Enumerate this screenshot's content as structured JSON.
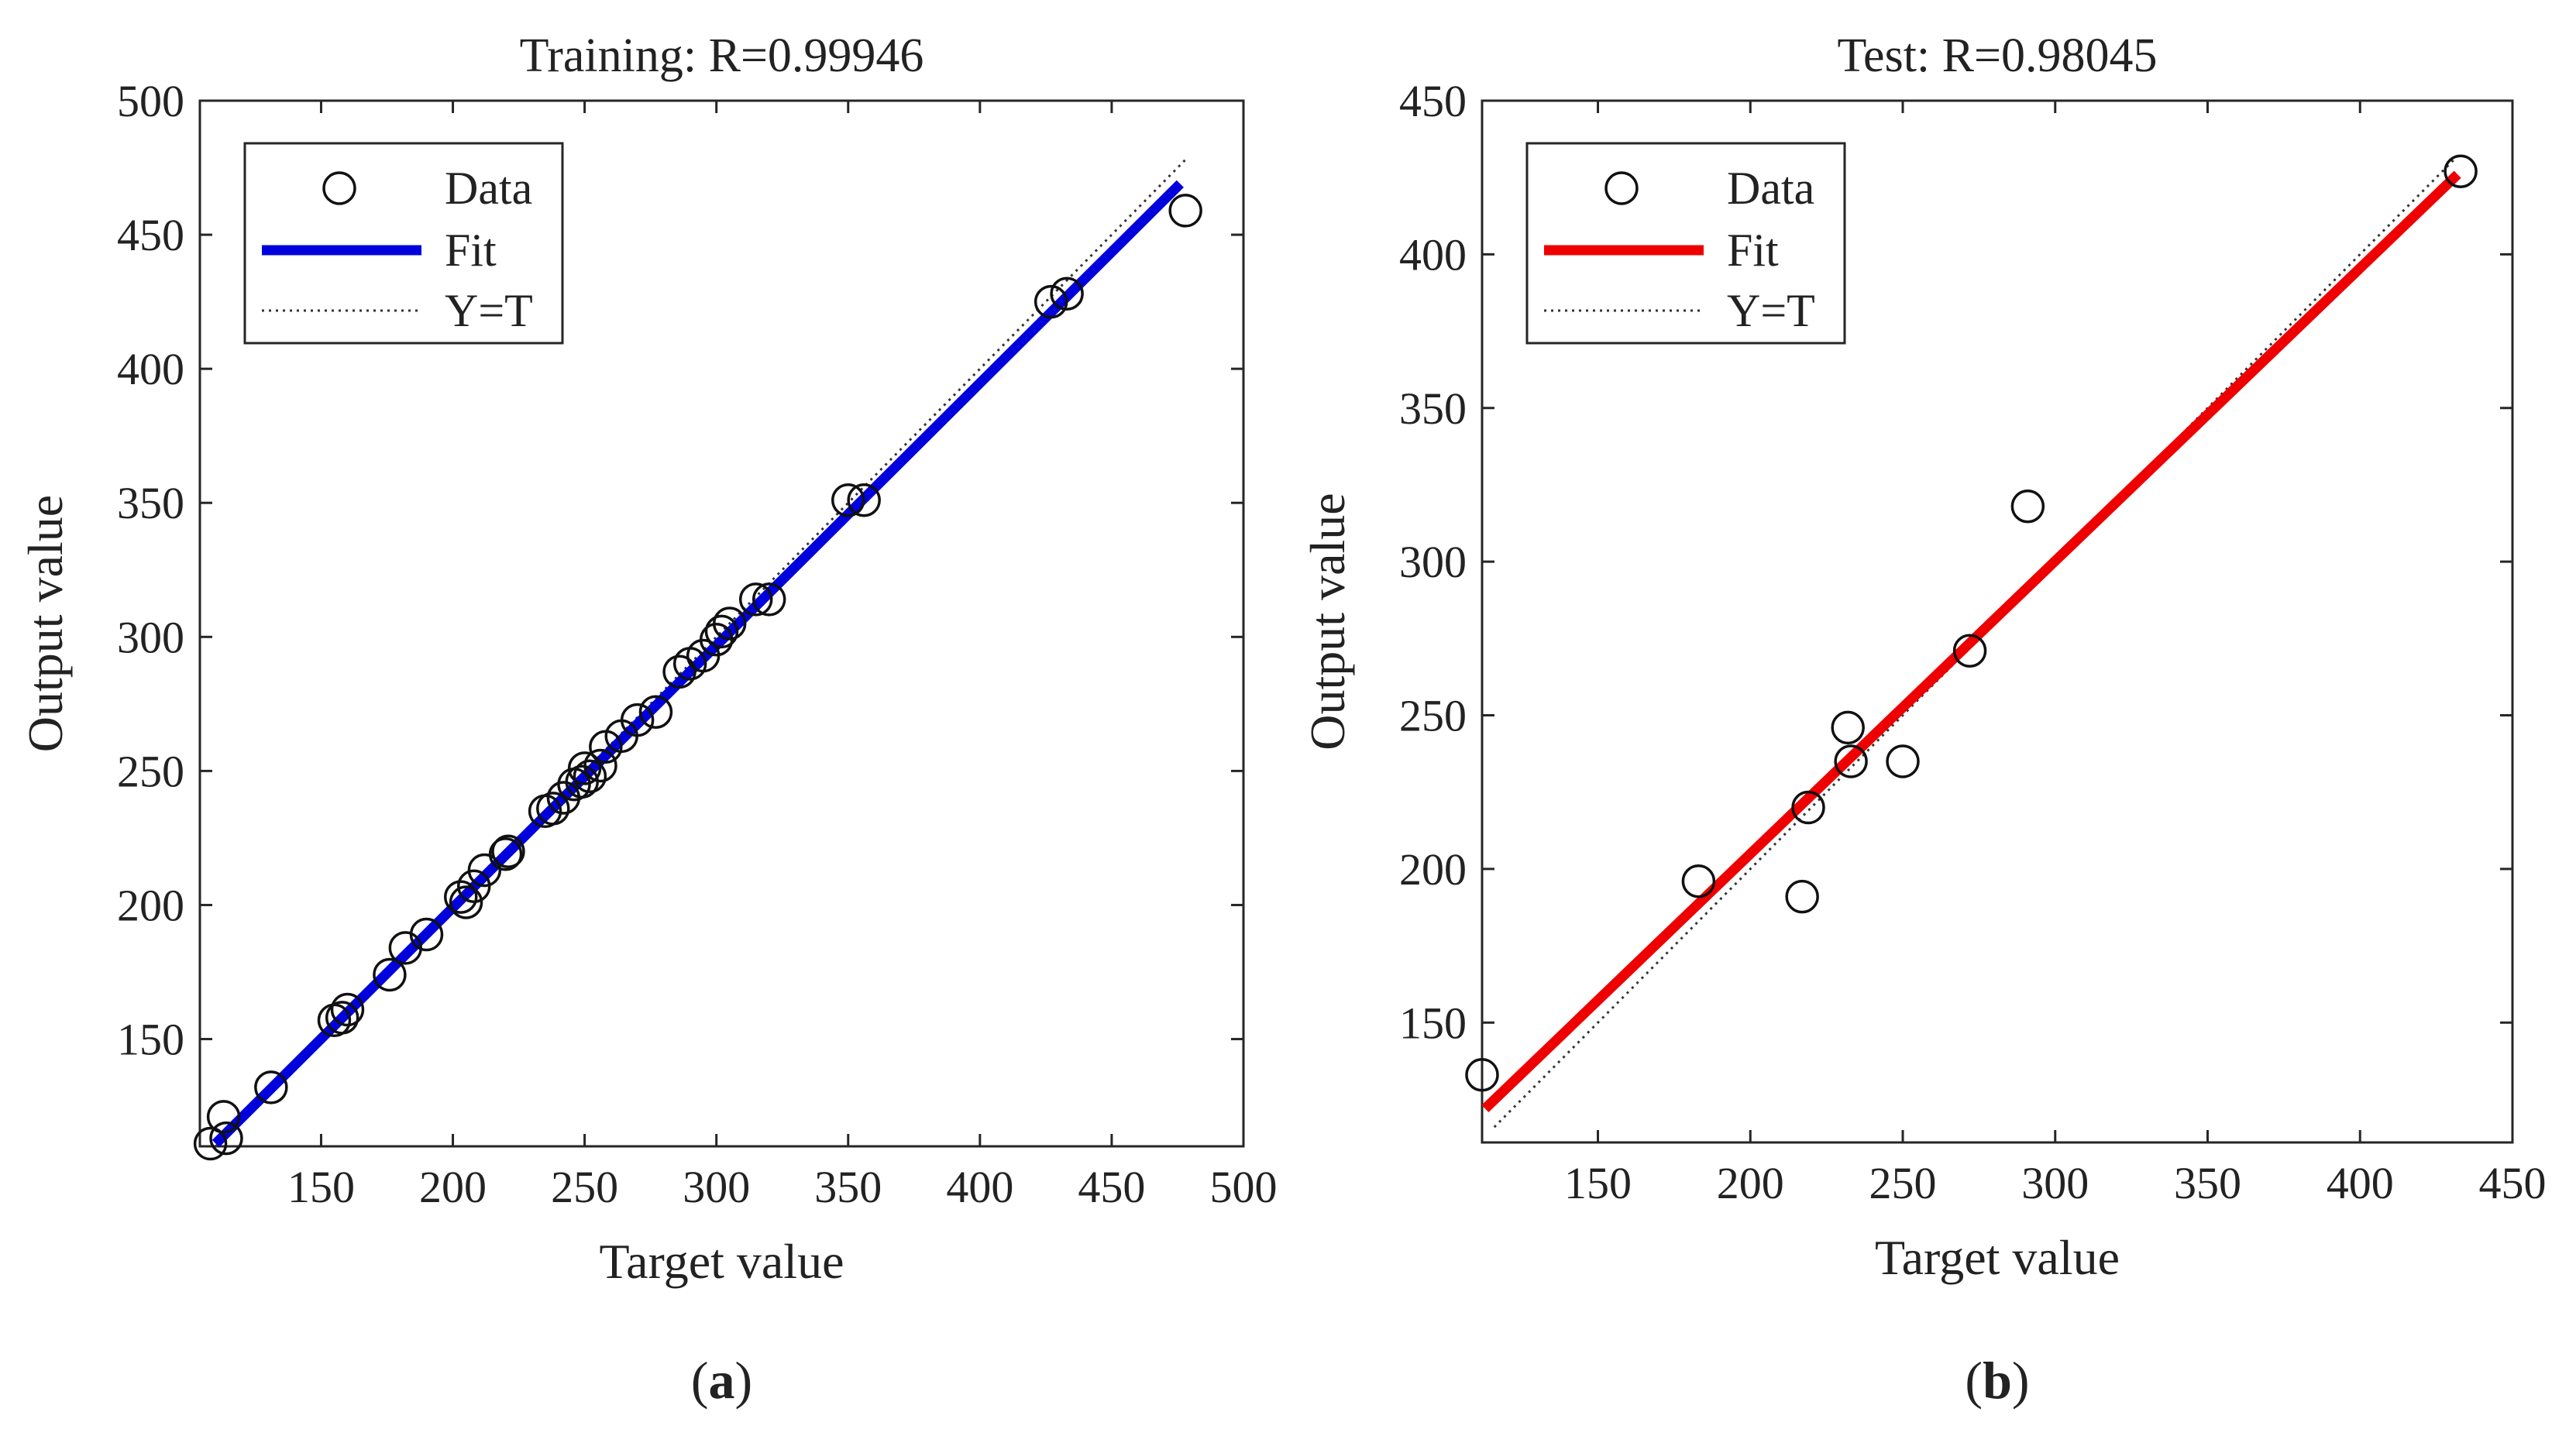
{
  "chart_data": [
    {
      "type": "scatter",
      "title": "Training: R=0.99946",
      "xlabel": "Target value",
      "ylabel": "Output value",
      "xlim": [
        104,
        500
      ],
      "ylim": [
        110,
        500
      ],
      "xticks": [
        150,
        200,
        250,
        300,
        350,
        400,
        450,
        500
      ],
      "yticks": [
        150,
        200,
        250,
        300,
        350,
        400,
        450,
        500
      ],
      "caption_letter": "a",
      "legend": {
        "position": "top-left",
        "entries": [
          {
            "label": "Data",
            "style": "marker"
          },
          {
            "label": "Fit",
            "style": "line"
          },
          {
            "label": "Y=T",
            "style": "dotted"
          }
        ]
      },
      "fit_color": "#0000dd",
      "fit": {
        "x": [
          110,
          476
        ],
        "y": [
          111,
          469
        ]
      },
      "identity": {
        "x": [
          110,
          478
        ],
        "y": [
          110,
          478
        ]
      },
      "series": [
        {
          "name": "Data",
          "x": [
            108,
            113,
            114,
            131,
            155,
            158,
            160,
            176,
            182,
            190,
            203,
            205,
            208,
            212,
            220,
            221,
            235,
            238,
            242,
            246,
            249,
            250,
            252,
            256,
            258,
            264,
            270,
            277,
            286,
            290,
            295,
            300,
            302,
            305,
            315,
            320,
            350,
            356,
            427,
            433,
            478
          ],
          "y": [
            111,
            121,
            113,
            132,
            157,
            158,
            161,
            174,
            184,
            189,
            203,
            201,
            207,
            213,
            219,
            220,
            235,
            236,
            240,
            245,
            246,
            251,
            248,
            252,
            259,
            263,
            269,
            272,
            287,
            290,
            293,
            299,
            302,
            305,
            314,
            314,
            351,
            351,
            425,
            428,
            459
          ]
        }
      ]
    },
    {
      "type": "scatter",
      "title": "Test: R=0.98045",
      "xlabel": "Target value",
      "ylabel": "Output value",
      "xlim": [
        112,
        450
      ],
      "ylim": [
        111,
        450
      ],
      "xticks": [
        150,
        200,
        250,
        300,
        350,
        400,
        450
      ],
      "yticks": [
        150,
        200,
        250,
        300,
        350,
        400,
        450
      ],
      "caption_letter": "b",
      "legend": {
        "position": "top-left",
        "entries": [
          {
            "label": "Data",
            "style": "marker"
          },
          {
            "label": "Fit",
            "style": "line"
          },
          {
            "label": "Y=T",
            "style": "dotted"
          }
        ]
      },
      "fit_color": "#ee0000",
      "fit": {
        "x": [
          113,
          432
        ],
        "y": [
          122,
          426
        ]
      },
      "identity": {
        "x": [
          116,
          432
        ],
        "y": [
          116,
          432
        ]
      },
      "series": [
        {
          "name": "Data",
          "x": [
            112,
            183,
            217,
            219,
            232,
            233,
            250,
            272,
            291,
            433
          ],
          "y": [
            133,
            196,
            191,
            220,
            246,
            235,
            235,
            271,
            318,
            427
          ]
        }
      ]
    }
  ]
}
